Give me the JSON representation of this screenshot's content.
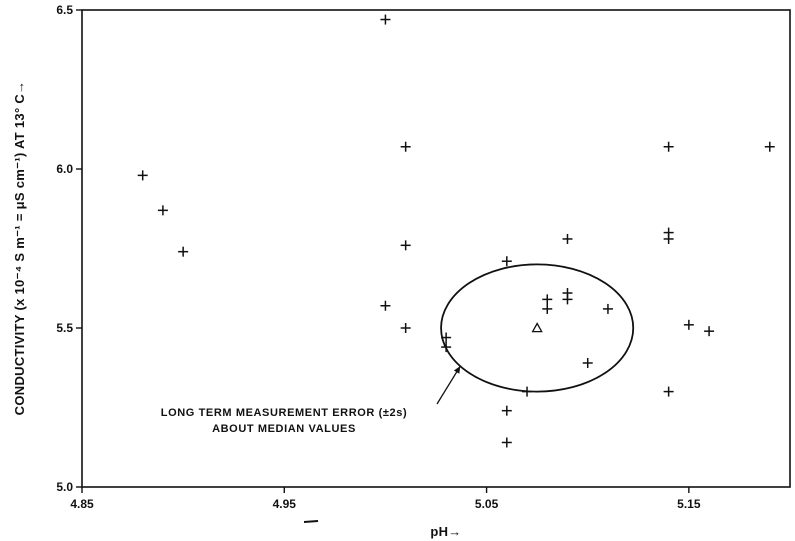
{
  "chart_data": {
    "type": "scatter",
    "title": "",
    "xlabel": "pH→",
    "ylabel": "CONDUCTIVITY (x 10⁻⁴ S m⁻¹ = μS cm⁻¹) AT 13° C→",
    "xlim": [
      4.85,
      5.2
    ],
    "ylim": [
      5.0,
      6.5
    ],
    "grid": false,
    "x_ticks": [
      {
        "value": 4.85,
        "label": "4.85"
      },
      {
        "value": 4.95,
        "label": "4.95"
      },
      {
        "value": 5.05,
        "label": "5.05"
      },
      {
        "value": 5.15,
        "label": "5.15"
      }
    ],
    "y_ticks": [
      {
        "value": 5.0,
        "label": "5.0"
      },
      {
        "value": 5.5,
        "label": "5.5"
      },
      {
        "value": 6.0,
        "label": "6.0"
      },
      {
        "value": 6.5,
        "label": "6.5"
      }
    ],
    "points": [
      {
        "x": 4.88,
        "y": 5.98
      },
      {
        "x": 4.89,
        "y": 5.87
      },
      {
        "x": 4.9,
        "y": 5.74
      },
      {
        "x": 5.0,
        "y": 6.47
      },
      {
        "x": 5.0,
        "y": 5.57
      },
      {
        "x": 5.01,
        "y": 6.07
      },
      {
        "x": 5.01,
        "y": 5.76
      },
      {
        "x": 5.01,
        "y": 5.5
      },
      {
        "x": 5.03,
        "y": 5.47
      },
      {
        "x": 5.03,
        "y": 5.44
      },
      {
        "x": 5.06,
        "y": 5.71
      },
      {
        "x": 5.06,
        "y": 5.24
      },
      {
        "x": 5.06,
        "y": 5.14
      },
      {
        "x": 5.07,
        "y": 5.3
      },
      {
        "x": 5.08,
        "y": 5.59
      },
      {
        "x": 5.08,
        "y": 5.56
      },
      {
        "x": 5.09,
        "y": 5.78
      },
      {
        "x": 5.09,
        "y": 5.61
      },
      {
        "x": 5.09,
        "y": 5.59
      },
      {
        "x": 5.1,
        "y": 5.39
      },
      {
        "x": 5.11,
        "y": 5.56
      },
      {
        "x": 5.14,
        "y": 6.07
      },
      {
        "x": 5.14,
        "y": 5.8
      },
      {
        "x": 5.14,
        "y": 5.78
      },
      {
        "x": 5.14,
        "y": 5.3
      },
      {
        "x": 5.15,
        "y": 5.51
      },
      {
        "x": 5.16,
        "y": 5.49
      },
      {
        "x": 5.19,
        "y": 6.07
      }
    ],
    "median": {
      "x": 5.075,
      "y": 5.5
    },
    "error_ellipse": {
      "center": {
        "x": 5.075,
        "y": 5.5
      },
      "x_halfwidth": 0.0475,
      "y_halfwidth": 0.2
    },
    "annotation": {
      "lines": [
        "LONG TERM MEASUREMENT ERROR (±2s)",
        "ABOUT MEDIAN VALUES"
      ],
      "arrow_target": {
        "x": 5.037,
        "y": 5.38
      }
    },
    "colors": {
      "ink": "#111111",
      "background": "#ffffff"
    }
  }
}
